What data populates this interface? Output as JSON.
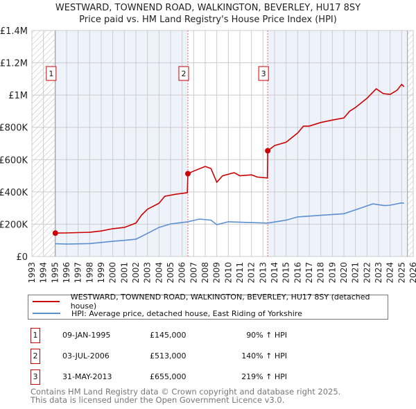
{
  "title": "WESTWARD, TOWNEND ROAD, WALKINGTON, BEVERLEY, HU17 8SY",
  "subtitle": "Price paid vs. HM Land Registry's House Price Index (HPI)",
  "colors": {
    "property": "#cc0000",
    "hpi": "#5b8fd0",
    "shade": "#eef2fb",
    "grid": "#cccccc"
  },
  "chart_data": {
    "type": "line",
    "title": "Price paid vs. HM Land Registry's House Price Index (HPI)",
    "xlim": [
      1993,
      2026
    ],
    "ylim": [
      0,
      1400000
    ],
    "x_ticks": [
      "1993",
      "1994",
      "1995",
      "1996",
      "1997",
      "1998",
      "1999",
      "2000",
      "2001",
      "2002",
      "2003",
      "2004",
      "2005",
      "2006",
      "2007",
      "2008",
      "2009",
      "2010",
      "2011",
      "2012",
      "2013",
      "2014",
      "2015",
      "2016",
      "2017",
      "2018",
      "2019",
      "2020",
      "2021",
      "2022",
      "2023",
      "2024",
      "2025",
      "2026"
    ],
    "y_ticks": [
      {
        "value": 0,
        "label": "£0"
      },
      {
        "value": 200000,
        "label": "£200K"
      },
      {
        "value": 400000,
        "label": "£400K"
      },
      {
        "value": 600000,
        "label": "£600K"
      },
      {
        "value": 800000,
        "label": "£800K"
      },
      {
        "value": 1000000,
        "label": "£1M"
      },
      {
        "value": 1200000,
        "label": "£1.2M"
      },
      {
        "value": 1400000,
        "label": "£1.4M"
      }
    ],
    "grid": true,
    "series": [
      {
        "name": "WESTWARD, TOWNEND ROAD, WALKINGTON, BEVERLEY, HU17 8SY (detached house)",
        "x": [
          1995.03,
          1996,
          1997,
          1998,
          1999,
          2000,
          2001,
          2002,
          2002.5,
          2003,
          2004,
          2004.5,
          2005.5,
          2006.45,
          2006.5,
          2007,
          2008,
          2008.5,
          2009,
          2009.5,
          2010.5,
          2011,
          2012,
          2012.5,
          2013.38,
          2013.41,
          2014,
          2015,
          2016,
          2016.5,
          2017,
          2018,
          2019,
          2020,
          2020.5,
          2021,
          2022,
          2022.8,
          2023.4,
          2024,
          2024.6,
          2025,
          2025.2
        ],
        "y": [
          145000,
          146000,
          148000,
          150000,
          158000,
          172000,
          180000,
          207000,
          257000,
          293000,
          330000,
          373000,
          386000,
          395000,
          513000,
          529000,
          558000,
          545000,
          460000,
          500000,
          519000,
          500000,
          506000,
          492000,
          486000,
          655000,
          687000,
          708000,
          765000,
          808000,
          808000,
          830000,
          845000,
          858000,
          900000,
          923000,
          980000,
          1039000,
          1009000,
          1004000,
          1030000,
          1066000,
          1052000
        ]
      },
      {
        "name": "HPI: Average price, detached house, East Riding of Yorkshire",
        "x": [
          1995.03,
          1996,
          1998,
          2000,
          2001,
          2002,
          2003,
          2004,
          2005,
          2006.5,
          2007.5,
          2008.5,
          2009,
          2010,
          2012,
          2013.4,
          2015,
          2016,
          2018,
          2020,
          2021,
          2022.5,
          2023.5,
          2024,
          2025,
          2025.2
        ],
        "y": [
          79000,
          77000,
          80000,
          94000,
          100000,
          107000,
          143000,
          180000,
          202000,
          215000,
          232000,
          225000,
          197000,
          215000,
          210000,
          207000,
          225000,
          245000,
          255000,
          265000,
          289000,
          326000,
          315000,
          318000,
          332000,
          330000
        ]
      }
    ],
    "hatched_ranges": [
      [
        1993,
        1995.03
      ],
      [
        2025.5,
        2026
      ]
    ],
    "shaded_ranges": [
      [
        1995.03,
        2006.5
      ],
      [
        2013.41,
        2025.5
      ]
    ],
    "sales": [
      {
        "label": "1",
        "x": 1995.03,
        "y": 145000
      },
      {
        "label": "2",
        "x": 2006.5,
        "y": 513000
      },
      {
        "label": "3",
        "x": 2013.41,
        "y": 655000
      }
    ],
    "y_tick_labels_display": [
      "£0",
      "£200K",
      "£400K",
      "£600K",
      "£800K",
      "£1M",
      "£1.2M",
      "£1.4M"
    ]
  },
  "legend": {
    "property": "WESTWARD, TOWNEND ROAD, WALKINGTON, BEVERLEY, HU17 8SY (detached house)",
    "hpi": "HPI: Average price, detached house, East Riding of Yorkshire"
  },
  "transactions": [
    {
      "num": "1",
      "date": "09-JAN-1995",
      "price": "£145,000",
      "hpi": "90% ↑ HPI"
    },
    {
      "num": "2",
      "date": "03-JUL-2006",
      "price": "£513,000",
      "hpi": "140% ↑ HPI"
    },
    {
      "num": "3",
      "date": "31-MAY-2013",
      "price": "£655,000",
      "hpi": "219% ↑ HPI"
    }
  ],
  "footer": {
    "line1": "Contains HM Land Registry data © Crown copyright and database right 2025.",
    "line2": "This data is licensed under the Open Government Licence v3.0."
  }
}
